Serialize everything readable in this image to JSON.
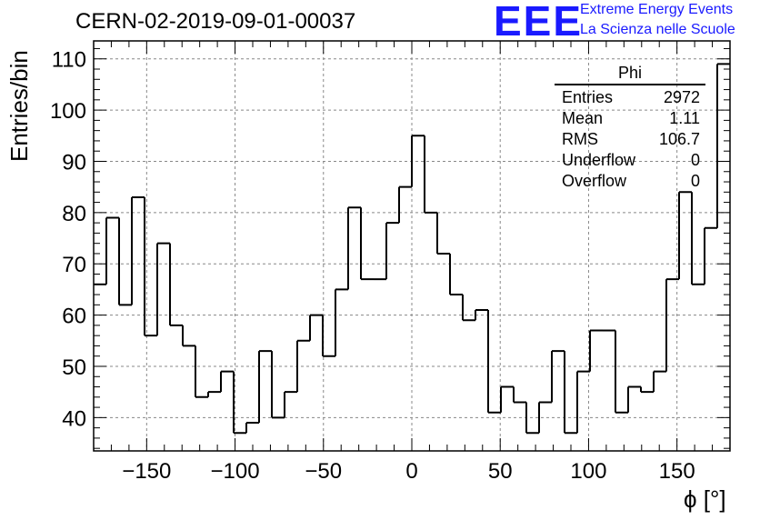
{
  "header": {
    "run_id": "CERN-02-2019-09-01-00037",
    "logo_text": "EEE",
    "logo_line1": "Extreme Energy Events",
    "logo_line2": "La Scienza nelle Scuole"
  },
  "stats_box": {
    "title": "Phi",
    "rows": [
      {
        "label": "Entries",
        "value": "2972"
      },
      {
        "label": "Mean",
        "value": "1.11"
      },
      {
        "label": "RMS",
        "value": "106.7"
      },
      {
        "label": "Underflow",
        "value": "0"
      },
      {
        "label": "Overflow",
        "value": "0"
      }
    ]
  },
  "colors": {
    "accent": "#1a1aff",
    "line": "#000000",
    "grid": "#888888"
  },
  "chart_data": {
    "type": "histogram",
    "title": "CERN-02-2019-09-01-00037",
    "xlabel": "ϕ [°]",
    "ylabel": "Entries/bin",
    "xlim": [
      -180,
      180
    ],
    "ylim": [
      33.5,
      113.5
    ],
    "grid": true,
    "bin_width": 7.2,
    "bin_edges_start": -180,
    "values": [
      66,
      79,
      62,
      83,
      56,
      74,
      58,
      54,
      44,
      45,
      49,
      37,
      39,
      53,
      40,
      45,
      55,
      60,
      52,
      65,
      81,
      67,
      67,
      78,
      85,
      95,
      80,
      72,
      64,
      59,
      61,
      41,
      46,
      43,
      37,
      43,
      53,
      37,
      49,
      57,
      57,
      41,
      46,
      45,
      49,
      67,
      84,
      66,
      77,
      109
    ],
    "xticks": [
      -150,
      -100,
      -50,
      0,
      50,
      100,
      150
    ],
    "xtick_labels": [
      "−150",
      "−100",
      "−50",
      "0",
      "50",
      "100",
      "150"
    ],
    "yticks": [
      40,
      50,
      60,
      70,
      80,
      90,
      100,
      110
    ],
    "ytick_labels": [
      "40",
      "50",
      "60",
      "70",
      "80",
      "90",
      "100",
      "110"
    ]
  }
}
